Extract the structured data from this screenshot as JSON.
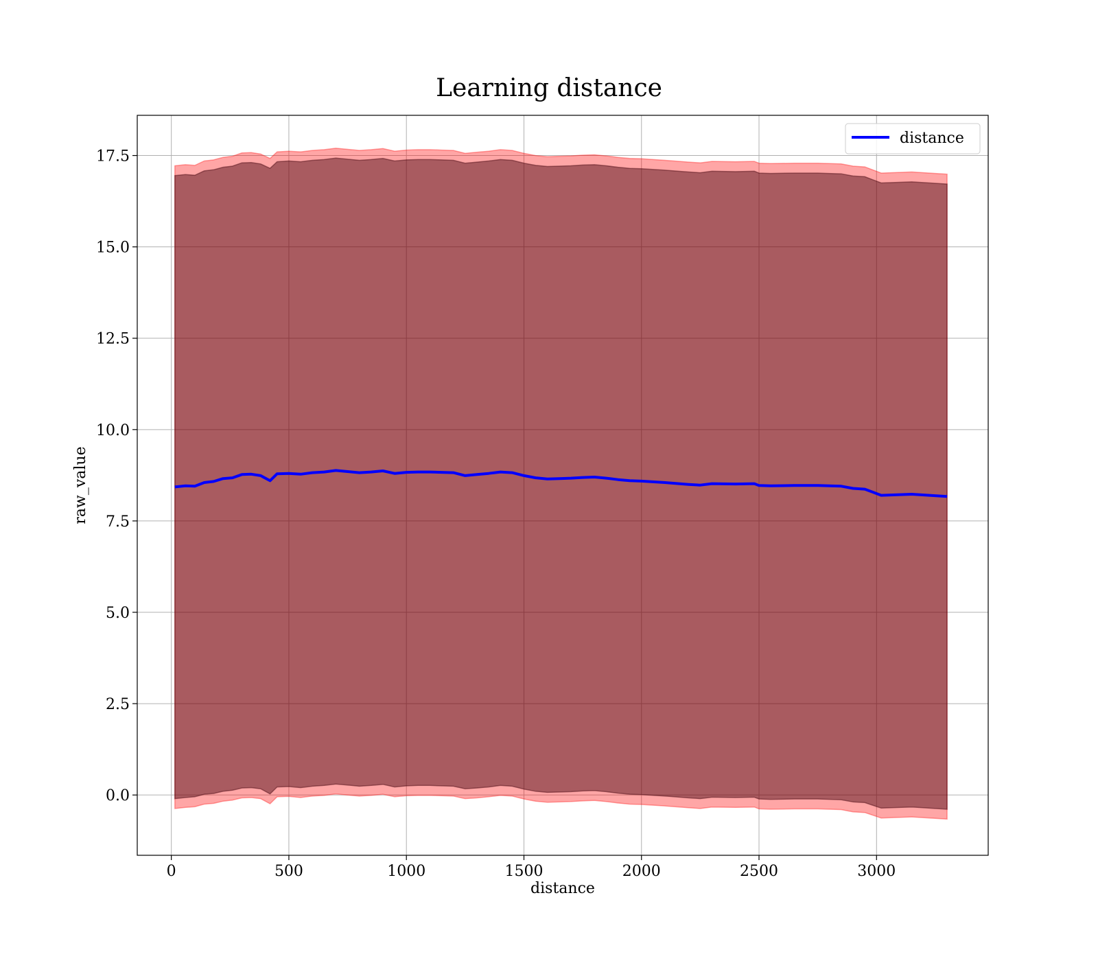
{
  "chart_data": {
    "type": "area",
    "title": "Learning distance",
    "xlabel": "distance",
    "ylabel": "raw_value",
    "xlim": [
      -145,
      3475
    ],
    "ylim": [
      -1.65,
      18.6
    ],
    "grid": true,
    "legend_position": "top-right",
    "x_ticks": [
      {
        "value": 0,
        "label": "0"
      },
      {
        "value": 500,
        "label": "500"
      },
      {
        "value": 1000,
        "label": "1000"
      },
      {
        "value": 1500,
        "label": "1500"
      },
      {
        "value": 2000,
        "label": "2000"
      },
      {
        "value": 2500,
        "label": "2500"
      },
      {
        "value": 3000,
        "label": "3000"
      }
    ],
    "y_ticks": [
      {
        "value": 0.0,
        "label": "0.0"
      },
      {
        "value": 2.5,
        "label": "2.5"
      },
      {
        "value": 5.0,
        "label": "5.0"
      },
      {
        "value": 7.5,
        "label": "7.5"
      },
      {
        "value": 10.0,
        "label": "10.0"
      },
      {
        "value": 12.5,
        "label": "12.5"
      },
      {
        "value": 15.0,
        "label": "15.0"
      },
      {
        "value": 17.5,
        "label": "17.5"
      }
    ],
    "x": [
      15,
      60,
      100,
      140,
      180,
      220,
      260,
      300,
      340,
      380,
      420,
      450,
      500,
      550,
      600,
      650,
      700,
      750,
      800,
      850,
      900,
      950,
      1000,
      1050,
      1100,
      1150,
      1200,
      1250,
      1300,
      1350,
      1400,
      1450,
      1500,
      1550,
      1600,
      1650,
      1700,
      1750,
      1800,
      1850,
      1900,
      1950,
      2000,
      2100,
      2200,
      2250,
      2300,
      2400,
      2480,
      2500,
      2550,
      2650,
      2750,
      2850,
      2900,
      2950,
      3020,
      3150,
      3300
    ],
    "series": [
      {
        "name": "distance",
        "color": "#0000ff",
        "values": [
          8.43,
          8.46,
          8.45,
          8.55,
          8.58,
          8.66,
          8.68,
          8.77,
          8.78,
          8.74,
          8.6,
          8.79,
          8.8,
          8.78,
          8.82,
          8.84,
          8.88,
          8.85,
          8.82,
          8.84,
          8.87,
          8.8,
          8.83,
          8.84,
          8.84,
          8.83,
          8.82,
          8.74,
          8.77,
          8.8,
          8.84,
          8.82,
          8.74,
          8.68,
          8.65,
          8.66,
          8.67,
          8.69,
          8.7,
          8.67,
          8.63,
          8.6,
          8.59,
          8.55,
          8.5,
          8.48,
          8.52,
          8.51,
          8.52,
          8.47,
          8.46,
          8.47,
          8.47,
          8.45,
          8.39,
          8.37,
          8.2,
          8.23,
          8.17
        ]
      }
    ],
    "bands": [
      {
        "color": "#ff0000",
        "opacity": 0.35,
        "lower": [
          -0.37,
          -0.34,
          -0.32,
          -0.25,
          -0.23,
          -0.17,
          -0.14,
          -0.08,
          -0.07,
          -0.1,
          -0.24,
          -0.05,
          -0.04,
          -0.07,
          -0.03,
          -0.01,
          0.03,
          0.0,
          -0.03,
          -0.01,
          0.02,
          -0.05,
          -0.02,
          -0.01,
          -0.01,
          -0.02,
          -0.03,
          -0.1,
          -0.08,
          -0.05,
          -0.01,
          -0.03,
          -0.11,
          -0.17,
          -0.2,
          -0.19,
          -0.18,
          -0.16,
          -0.15,
          -0.18,
          -0.22,
          -0.25,
          -0.26,
          -0.3,
          -0.35,
          -0.37,
          -0.33,
          -0.34,
          -0.33,
          -0.38,
          -0.39,
          -0.38,
          -0.38,
          -0.4,
          -0.46,
          -0.48,
          -0.63,
          -0.6,
          -0.66
        ],
        "upper": [
          17.22,
          17.25,
          17.23,
          17.35,
          17.38,
          17.45,
          17.48,
          17.57,
          17.58,
          17.54,
          17.42,
          17.6,
          17.62,
          17.6,
          17.64,
          17.66,
          17.7,
          17.67,
          17.64,
          17.66,
          17.69,
          17.62,
          17.65,
          17.66,
          17.66,
          17.65,
          17.64,
          17.56,
          17.59,
          17.62,
          17.66,
          17.64,
          17.56,
          17.5,
          17.47,
          17.48,
          17.49,
          17.51,
          17.52,
          17.49,
          17.45,
          17.42,
          17.41,
          17.37,
          17.32,
          17.3,
          17.34,
          17.33,
          17.34,
          17.29,
          17.28,
          17.29,
          17.29,
          17.27,
          17.21,
          17.19,
          17.02,
          17.05,
          16.99
        ]
      },
      {
        "color": "#40000a",
        "opacity": 0.45,
        "lower": [
          -0.1,
          -0.07,
          -0.05,
          0.02,
          0.04,
          0.1,
          0.13,
          0.19,
          0.2,
          0.17,
          0.03,
          0.22,
          0.23,
          0.2,
          0.24,
          0.26,
          0.3,
          0.27,
          0.24,
          0.26,
          0.29,
          0.22,
          0.25,
          0.26,
          0.26,
          0.25,
          0.24,
          0.17,
          0.19,
          0.22,
          0.26,
          0.24,
          0.16,
          0.1,
          0.07,
          0.08,
          0.09,
          0.11,
          0.12,
          0.09,
          0.05,
          0.02,
          0.01,
          -0.03,
          -0.08,
          -0.1,
          -0.06,
          -0.07,
          -0.06,
          -0.11,
          -0.12,
          -0.11,
          -0.11,
          -0.13,
          -0.19,
          -0.21,
          -0.36,
          -0.33,
          -0.39
        ],
        "upper": [
          16.95,
          16.98,
          16.96,
          17.08,
          17.11,
          17.18,
          17.21,
          17.3,
          17.31,
          17.27,
          17.15,
          17.33,
          17.35,
          17.33,
          17.37,
          17.39,
          17.43,
          17.4,
          17.37,
          17.39,
          17.42,
          17.35,
          17.38,
          17.39,
          17.39,
          17.38,
          17.37,
          17.29,
          17.32,
          17.35,
          17.39,
          17.37,
          17.29,
          17.23,
          17.2,
          17.21,
          17.22,
          17.24,
          17.25,
          17.22,
          17.18,
          17.15,
          17.14,
          17.1,
          17.05,
          17.03,
          17.07,
          17.06,
          17.07,
          17.02,
          17.01,
          17.02,
          17.02,
          17.0,
          16.94,
          16.92,
          16.75,
          16.78,
          16.72
        ]
      }
    ],
    "legend": [
      {
        "label": "distance",
        "color": "#0000ff"
      }
    ]
  }
}
